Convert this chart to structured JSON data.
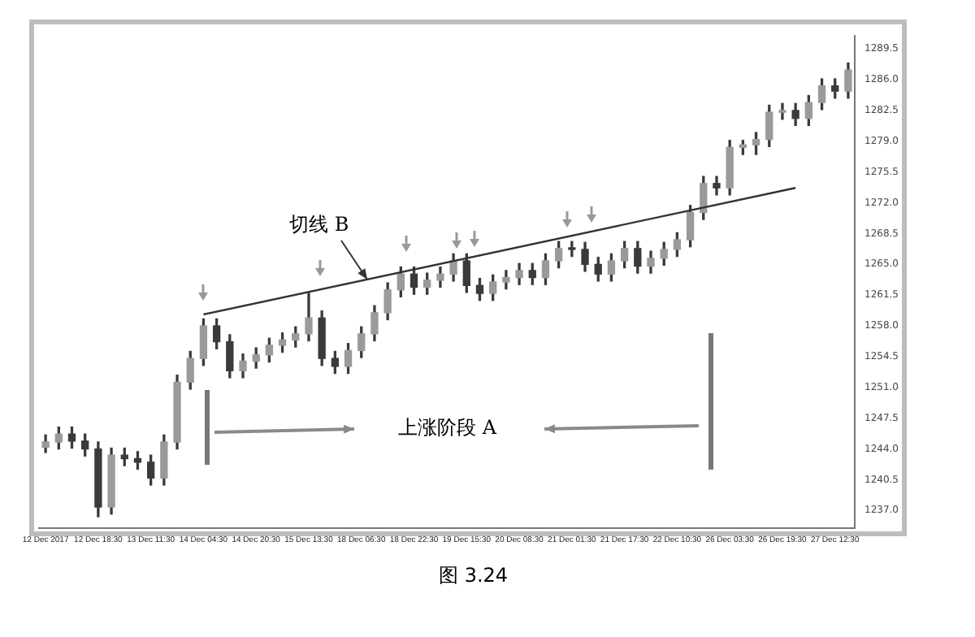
{
  "chart_data": {
    "type": "candlestick",
    "categories": [
      "12 Dec 2017",
      null,
      null,
      null,
      "12 Dec 18:30",
      null,
      null,
      null,
      "13 Dec 11:30",
      null,
      null,
      null,
      "14 Dec 04:30",
      null,
      null,
      null,
      "14 Dec 20:30",
      null,
      null,
      null,
      "15 Dec 13:30",
      null,
      null,
      null,
      "18 Dec 06:30",
      null,
      null,
      null,
      "18 Dec 22:30",
      null,
      null,
      null,
      "19 Dec 15:30",
      null,
      null,
      null,
      "20 Dec 08:30",
      null,
      null,
      null,
      "21 Dec 01:30",
      null,
      null,
      null,
      "21 Dec 17:30",
      null,
      null,
      null,
      "22 Dec 10:30",
      null,
      null,
      null,
      "26 Dec 03:30",
      null,
      null,
      null,
      "26 Dec 19:30",
      null,
      null,
      null,
      "27 Dec 12:30",
      null
    ],
    "ohlc": [
      [
        1244.2,
        1245.6,
        1243.6,
        1244.8
      ],
      [
        1244.8,
        1246.5,
        1244.0,
        1245.7
      ],
      [
        1245.7,
        1246.5,
        1244.1,
        1244.9
      ],
      [
        1244.9,
        1245.7,
        1243.2,
        1244.0
      ],
      [
        1244.0,
        1244.8,
        1236.3,
        1237.4
      ],
      [
        1237.4,
        1244.1,
        1236.6,
        1243.3
      ],
      [
        1243.3,
        1244.1,
        1242.1,
        1242.9
      ],
      [
        1242.9,
        1243.7,
        1241.7,
        1242.5
      ],
      [
        1242.5,
        1243.3,
        1239.9,
        1240.7
      ],
      [
        1240.7,
        1245.6,
        1239.9,
        1244.8
      ],
      [
        1244.8,
        1252.4,
        1244.0,
        1251.6
      ],
      [
        1251.6,
        1255.1,
        1250.8,
        1254.3
      ],
      [
        1254.3,
        1258.8,
        1253.5,
        1258.0
      ],
      [
        1258.0,
        1258.8,
        1255.4,
        1256.2
      ],
      [
        1256.2,
        1257.0,
        1252.1,
        1252.9
      ],
      [
        1252.9,
        1254.8,
        1252.1,
        1254.0
      ],
      [
        1254.0,
        1255.5,
        1253.2,
        1254.7
      ],
      [
        1254.7,
        1256.6,
        1253.9,
        1255.8
      ],
      [
        1255.8,
        1257.2,
        1255.0,
        1256.4
      ],
      [
        1256.4,
        1257.9,
        1255.6,
        1257.1
      ],
      [
        1257.1,
        1261.7,
        1256.3,
        1258.9
      ],
      [
        1258.9,
        1259.7,
        1253.5,
        1254.3
      ],
      [
        1254.3,
        1255.1,
        1252.6,
        1253.4
      ],
      [
        1253.4,
        1256.0,
        1252.6,
        1255.2
      ],
      [
        1255.2,
        1257.9,
        1254.4,
        1257.1
      ],
      [
        1257.1,
        1260.3,
        1256.3,
        1259.5
      ],
      [
        1259.5,
        1262.9,
        1258.7,
        1262.1
      ],
      [
        1262.1,
        1264.7,
        1261.3,
        1263.9
      ],
      [
        1263.9,
        1264.7,
        1261.6,
        1262.4
      ],
      [
        1262.4,
        1264.0,
        1261.6,
        1263.2
      ],
      [
        1263.2,
        1264.7,
        1262.4,
        1263.9
      ],
      [
        1263.9,
        1266.2,
        1263.1,
        1265.4
      ],
      [
        1265.4,
        1266.2,
        1261.8,
        1262.6
      ],
      [
        1262.6,
        1263.4,
        1260.9,
        1261.7
      ],
      [
        1261.7,
        1263.8,
        1260.9,
        1263.0
      ],
      [
        1263.0,
        1264.3,
        1262.2,
        1263.5
      ],
      [
        1263.5,
        1265.1,
        1262.7,
        1264.3
      ],
      [
        1264.3,
        1265.1,
        1262.7,
        1263.5
      ],
      [
        1263.5,
        1266.2,
        1262.7,
        1265.4
      ],
      [
        1265.4,
        1267.6,
        1264.6,
        1266.8
      ],
      [
        1266.8,
        1267.6,
        1265.9,
        1266.7
      ],
      [
        1266.7,
        1267.5,
        1264.2,
        1265.0
      ],
      [
        1265.0,
        1265.8,
        1263.1,
        1263.9
      ],
      [
        1263.9,
        1266.2,
        1263.1,
        1265.4
      ],
      [
        1265.4,
        1267.6,
        1264.6,
        1266.8
      ],
      [
        1266.8,
        1267.6,
        1264.0,
        1264.8
      ],
      [
        1264.8,
        1266.5,
        1264.0,
        1265.7
      ],
      [
        1265.7,
        1267.5,
        1264.9,
        1266.7
      ],
      [
        1266.7,
        1268.6,
        1265.9,
        1267.8
      ],
      [
        1267.8,
        1271.7,
        1267.0,
        1270.9
      ],
      [
        1270.9,
        1275.0,
        1270.1,
        1274.2
      ],
      [
        1274.2,
        1275.0,
        1272.9,
        1273.7
      ],
      [
        1273.7,
        1279.1,
        1272.9,
        1278.3
      ],
      [
        1278.3,
        1279.1,
        1277.5,
        1278.6
      ],
      [
        1278.6,
        1280.0,
        1277.5,
        1279.2
      ],
      [
        1279.2,
        1283.1,
        1278.4,
        1282.3
      ],
      [
        1282.3,
        1283.3,
        1281.5,
        1282.5
      ],
      [
        1282.5,
        1283.3,
        1280.8,
        1281.6
      ],
      [
        1281.6,
        1284.2,
        1280.8,
        1283.4
      ],
      [
        1283.4,
        1286.1,
        1282.6,
        1285.3
      ],
      [
        1285.3,
        1286.1,
        1283.9,
        1284.7
      ],
      [
        1284.7,
        1287.9,
        1283.9,
        1287.1
      ]
    ],
    "color": "#3a3a3a",
    "colors": [
      "#9a9a9a",
      "#9a9a9a",
      "#3a3a3a",
      "#3a3a3a",
      "#3a3a3a",
      "#9a9a9a",
      "#3a3a3a",
      "#3a3a3a",
      "#3a3a3a",
      "#9a9a9a",
      "#9a9a9a",
      "#9a9a9a",
      "#9a9a9a",
      "#3a3a3a",
      "#3a3a3a",
      "#9a9a9a",
      "#9a9a9a",
      "#9a9a9a",
      "#9a9a9a",
      "#9a9a9a",
      "#9a9a9a",
      "#3a3a3a",
      "#3a3a3a",
      "#9a9a9a",
      "#9a9a9a",
      "#9a9a9a",
      "#9a9a9a",
      "#9a9a9a",
      "#3a3a3a",
      "#9a9a9a",
      "#9a9a9a",
      "#9a9a9a",
      "#3a3a3a",
      "#3a3a3a",
      "#9a9a9a",
      "#9a9a9a",
      "#9a9a9a",
      "#3a3a3a",
      "#9a9a9a",
      "#9a9a9a",
      "#3a3a3a",
      "#3a3a3a",
      "#3a3a3a",
      "#9a9a9a",
      "#9a9a9a",
      "#3a3a3a",
      "#9a9a9a",
      "#9a9a9a",
      "#9a9a9a",
      "#9a9a9a",
      "#9a9a9a",
      "#3a3a3a",
      "#9a9a9a",
      "#9a9a9a",
      "#9a9a9a",
      "#9a9a9a",
      "#9a9a9a",
      "#3a3a3a",
      "#9a9a9a",
      "#9a9a9a",
      "#3a3a3a",
      "#9a9a9a"
    ],
    "series": [
      {
        "type": "line",
        "values": [
          null,
          null,
          null,
          null,
          null,
          null,
          null,
          null,
          null,
          null,
          null,
          null,
          1259.3,
          null,
          null,
          null,
          null,
          null,
          null,
          null,
          null,
          null,
          null,
          null,
          null,
          null,
          null,
          null,
          null,
          null,
          null,
          null,
          null,
          null,
          null,
          null,
          null,
          null,
          null,
          null,
          null,
          null,
          null,
          null,
          null,
          null,
          null,
          null,
          null,
          null,
          null,
          null,
          null,
          null,
          null,
          null,
          null,
          1273.7,
          null,
          null,
          null,
          null
        ],
        "color": "#333333"
      }
    ],
    "ylim": [
      1235.0,
      1291.0
    ],
    "yticks": [
      {
        "value": 1237.0,
        "label": "1237.0"
      },
      1240.5,
      {
        "value": 1244.0,
        "label": "1244.0"
      },
      1247.5,
      {
        "value": 1251.0,
        "label": "1251.0"
      },
      1254.5,
      {
        "value": 1258.0,
        "label": "1258.0"
      },
      1261.5,
      {
        "value": 1265.0,
        "label": "1265.0"
      },
      1268.5,
      {
        "value": 1272.0,
        "label": "1272.0"
      },
      1275.5,
      {
        "value": 1279.0,
        "label": "1279.0"
      },
      1282.5,
      {
        "value": 1286.0,
        "label": "1286.0"
      },
      1289.5
    ],
    "grid": false,
    "legend": false,
    "annotations": [
      "切线 B",
      "上涨阶段 A",
      "图 3.24"
    ]
  }
}
